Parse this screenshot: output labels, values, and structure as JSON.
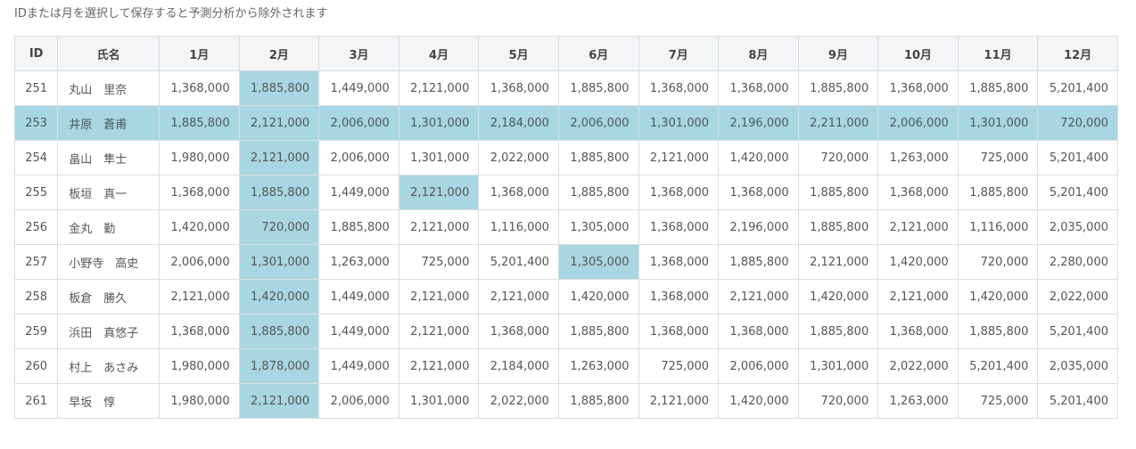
{
  "instruction": "IDまたは月を選択して保存すると予測分析から除外されます",
  "columns": [
    "ID",
    "氏名",
    "1月",
    "2月",
    "3月",
    "4月",
    "5月",
    "6月",
    "7月",
    "8月",
    "9月",
    "10月",
    "11月",
    "12月"
  ],
  "selected_month_column": "2月",
  "selected_id_row": "253",
  "selection_color": "#a8d6e3",
  "rows": [
    {
      "id": "251",
      "name": "丸山　里奈",
      "values": [
        "1,368,000",
        "1,885,800",
        "1,449,000",
        "2,121,000",
        "1,368,000",
        "1,885,800",
        "1,368,000",
        "1,368,000",
        "1,885,800",
        "1,368,000",
        "1,885,800",
        "5,201,400"
      ],
      "selected_cells": []
    },
    {
      "id": "253",
      "name": "井原　蒼甫",
      "values": [
        "1,885,800",
        "2,121,000",
        "2,006,000",
        "1,301,000",
        "2,184,000",
        "2,006,000",
        "1,301,000",
        "2,196,000",
        "2,211,000",
        "2,006,000",
        "1,301,000",
        "720,000"
      ],
      "selected_cells": []
    },
    {
      "id": "254",
      "name": "畠山　隼士",
      "values": [
        "1,980,000",
        "2,121,000",
        "2,006,000",
        "1,301,000",
        "2,022,000",
        "1,885,800",
        "2,121,000",
        "1,420,000",
        "720,000",
        "1,263,000",
        "725,000",
        "5,201,400"
      ],
      "selected_cells": []
    },
    {
      "id": "255",
      "name": "板垣　真一",
      "values": [
        "1,368,000",
        "1,885,800",
        "1,449,000",
        "2,121,000",
        "1,368,000",
        "1,885,800",
        "1,368,000",
        "1,368,000",
        "1,885,800",
        "1,368,000",
        "1,885,800",
        "5,201,400"
      ],
      "selected_cells": [
        "4月"
      ]
    },
    {
      "id": "256",
      "name": "金丸　勤",
      "values": [
        "1,420,000",
        "720,000",
        "1,885,800",
        "2,121,000",
        "1,116,000",
        "1,305,000",
        "1,368,000",
        "2,196,000",
        "1,885,800",
        "2,121,000",
        "1,116,000",
        "2,035,000"
      ],
      "selected_cells": []
    },
    {
      "id": "257",
      "name": "小野寺　高史",
      "values": [
        "2,006,000",
        "1,301,000",
        "1,263,000",
        "725,000",
        "5,201,400",
        "1,305,000",
        "1,368,000",
        "1,885,800",
        "2,121,000",
        "1,420,000",
        "720,000",
        "2,280,000"
      ],
      "selected_cells": [
        "6月"
      ]
    },
    {
      "id": "258",
      "name": "板倉　勝久",
      "values": [
        "2,121,000",
        "1,420,000",
        "1,449,000",
        "2,121,000",
        "2,121,000",
        "1,420,000",
        "1,368,000",
        "2,121,000",
        "1,420,000",
        "2,121,000",
        "1,420,000",
        "2,022,000"
      ],
      "selected_cells": []
    },
    {
      "id": "259",
      "name": "浜田　真悠子",
      "values": [
        "1,368,000",
        "1,885,800",
        "1,449,000",
        "2,121,000",
        "1,368,000",
        "1,885,800",
        "1,368,000",
        "1,368,000",
        "1,885,800",
        "1,368,000",
        "1,885,800",
        "5,201,400"
      ],
      "selected_cells": []
    },
    {
      "id": "260",
      "name": "村上　あさみ",
      "values": [
        "1,980,000",
        "1,878,000",
        "1,449,000",
        "2,121,000",
        "2,184,000",
        "1,263,000",
        "725,000",
        "2,006,000",
        "1,301,000",
        "2,022,000",
        "5,201,400",
        "2,035,000"
      ],
      "selected_cells": []
    },
    {
      "id": "261",
      "name": "早坂　惇",
      "values": [
        "1,980,000",
        "2,121,000",
        "2,006,000",
        "1,301,000",
        "2,022,000",
        "1,885,800",
        "2,121,000",
        "1,420,000",
        "720,000",
        "1,263,000",
        "725,000",
        "5,201,400"
      ],
      "selected_cells": []
    }
  ]
}
